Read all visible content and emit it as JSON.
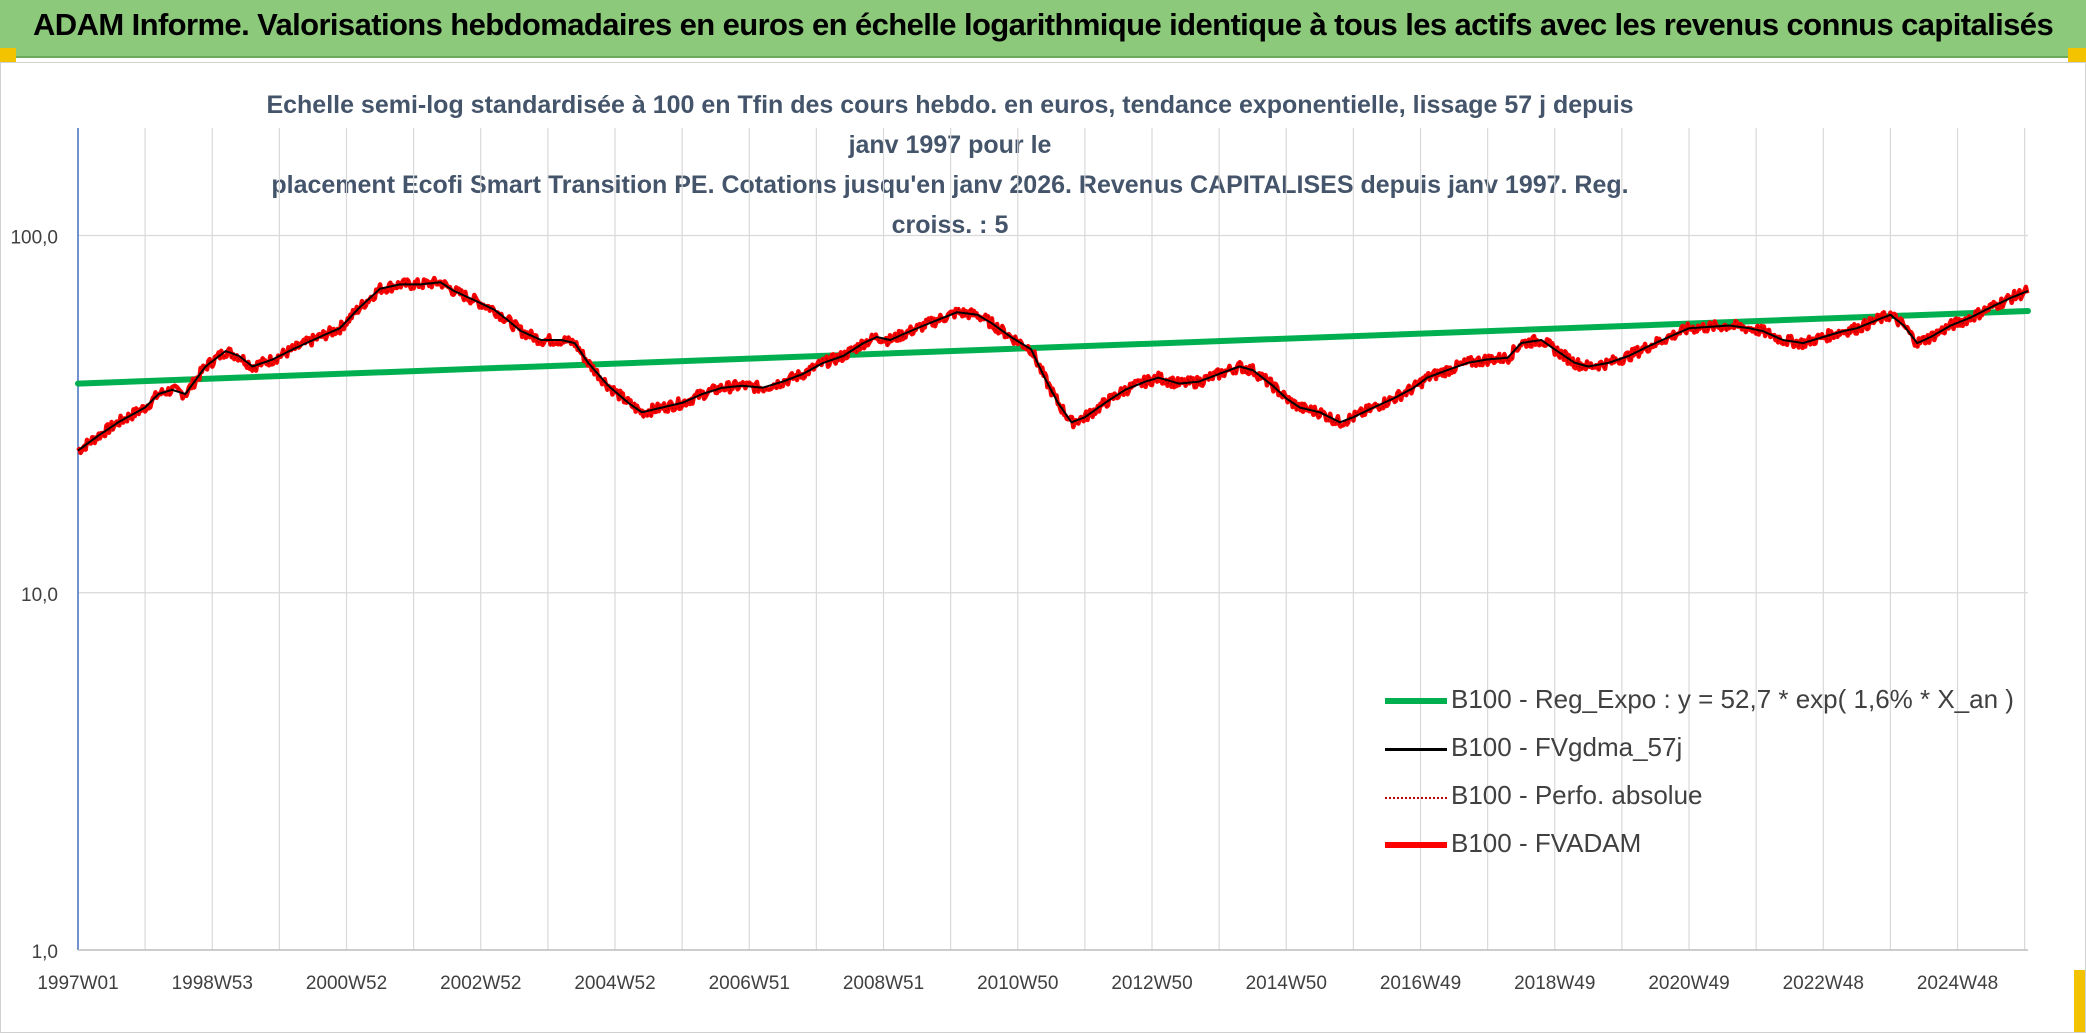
{
  "header": {
    "title": "ADAM Informe. Valorisations hebdomadaires en euros en échelle logarithmique identique à tous les actifs avec les revenus connus capitalisés"
  },
  "colors": {
    "banner": "#8cc97a",
    "reg_expo": "#00b050",
    "fvgdma": "#000000",
    "perfo": "#c00000",
    "fvadam": "#ff0000"
  },
  "chart_data": {
    "type": "line",
    "title": "Echelle semi-log standardisée à 100 en Tfin des cours hebdo. en euros, tendance exponentielle, lissage 57 j depuis janv 1997 pour le placement Ecofi Smart Transition PE. Cotations jusqu'en janv 2026. Revenus CAPITALISES depuis janv 1997. Reg. croiss. : 5",
    "title_lines": [
      "Echelle semi-log standardisée à 100 en Tfin des cours hebdo. en euros, tendance exponentielle, lissage 57 j depuis janv 1997 pour le",
      "placement Ecofi Smart Transition PE. Cotations jusqu'en janv 2026. Revenus CAPITALISES depuis janv 1997. Reg. croiss. : 5"
    ],
    "y_scale": "log",
    "ylim": [
      1,
      200
    ],
    "y_ticks": [
      {
        "value": 1,
        "label": "1,0"
      },
      {
        "value": 10,
        "label": "10,0"
      },
      {
        "value": 100,
        "label": "100,0"
      }
    ],
    "x_range": [
      1997.0,
      2026.05
    ],
    "x_ticks": [
      {
        "value": 1997.0,
        "label": "1997W01"
      },
      {
        "value": 1999.0,
        "label": "1998W53"
      },
      {
        "value": 2001.0,
        "label": "2000W52"
      },
      {
        "value": 2003.0,
        "label": "2002W52"
      },
      {
        "value": 2005.0,
        "label": "2004W52"
      },
      {
        "value": 2007.0,
        "label": "2006W51"
      },
      {
        "value": 2009.0,
        "label": "2008W51"
      },
      {
        "value": 2011.0,
        "label": "2010W50"
      },
      {
        "value": 2013.0,
        "label": "2012W50"
      },
      {
        "value": 2015.0,
        "label": "2014W50"
      },
      {
        "value": 2017.0,
        "label": "2016W49"
      },
      {
        "value": 2019.0,
        "label": "2018W49"
      },
      {
        "value": 2021.0,
        "label": "2020W49"
      },
      {
        "value": 2023.0,
        "label": "2022W48"
      },
      {
        "value": 2025.0,
        "label": "2024W48"
      }
    ],
    "grid": true,
    "legend_position": "bottom-right",
    "series": [
      {
        "name": "B100 - Reg_Expo : y = 52,7 * exp( 1,6% *  X_an )",
        "style": "solid-thick",
        "points": [
          [
            1997.0,
            38.5
          ],
          [
            2026.05,
            61.5
          ]
        ]
      },
      {
        "name": "B100 - FVgdma_57j",
        "style": "solid-thin",
        "points": [
          [
            1997.0,
            25
          ],
          [
            1997.3,
            27.5
          ],
          [
            1997.6,
            30
          ],
          [
            1998.0,
            33
          ],
          [
            1998.2,
            36
          ],
          [
            1998.4,
            37
          ],
          [
            1998.6,
            36
          ],
          [
            1998.9,
            43
          ],
          [
            1999.2,
            47.5
          ],
          [
            1999.4,
            46
          ],
          [
            1999.6,
            43
          ],
          [
            1999.9,
            45
          ],
          [
            2000.2,
            48
          ],
          [
            2000.4,
            50
          ],
          [
            2000.7,
            53
          ],
          [
            2000.9,
            55
          ],
          [
            2001.2,
            63
          ],
          [
            2001.5,
            71
          ],
          [
            2001.8,
            73
          ],
          [
            2002.1,
            73
          ],
          [
            2002.4,
            74
          ],
          [
            2002.6,
            70
          ],
          [
            2002.9,
            66
          ],
          [
            2003.2,
            62
          ],
          [
            2003.4,
            58
          ],
          [
            2003.6,
            54
          ],
          [
            2003.9,
            51
          ],
          [
            2004.2,
            51
          ],
          [
            2004.4,
            50
          ],
          [
            2004.6,
            44
          ],
          [
            2004.9,
            38
          ],
          [
            2005.2,
            34
          ],
          [
            2005.4,
            32
          ],
          [
            2005.7,
            33
          ],
          [
            2006.0,
            34
          ],
          [
            2006.3,
            36
          ],
          [
            2006.6,
            37.5
          ],
          [
            2006.9,
            38
          ],
          [
            2007.2,
            37.5
          ],
          [
            2007.5,
            39
          ],
          [
            2007.8,
            41
          ],
          [
            2008.1,
            44
          ],
          [
            2008.4,
            46
          ],
          [
            2008.7,
            50
          ],
          [
            2008.9,
            52
          ],
          [
            2009.1,
            51
          ],
          [
            2009.3,
            53
          ],
          [
            2009.6,
            56
          ],
          [
            2009.9,
            59
          ],
          [
            2010.1,
            61
          ],
          [
            2010.4,
            60
          ],
          [
            2010.6,
            57
          ],
          [
            2010.9,
            52
          ],
          [
            2011.2,
            48
          ],
          [
            2011.4,
            40
          ],
          [
            2011.6,
            34
          ],
          [
            2011.8,
            30
          ],
          [
            2012.0,
            31
          ],
          [
            2012.3,
            34
          ],
          [
            2012.6,
            37
          ],
          [
            2012.9,
            39
          ],
          [
            2013.1,
            40
          ],
          [
            2013.4,
            38.5
          ],
          [
            2013.7,
            39
          ],
          [
            2014.0,
            41
          ],
          [
            2014.3,
            43
          ],
          [
            2014.5,
            42
          ],
          [
            2014.8,
            38
          ],
          [
            2015.0,
            35
          ],
          [
            2015.2,
            33
          ],
          [
            2015.5,
            32
          ],
          [
            2015.8,
            30
          ],
          [
            2016.0,
            31
          ],
          [
            2016.3,
            33
          ],
          [
            2016.6,
            35
          ],
          [
            2016.9,
            37.5
          ],
          [
            2017.1,
            40
          ],
          [
            2017.4,
            42
          ],
          [
            2017.7,
            44
          ],
          [
            2018.0,
            45
          ],
          [
            2018.3,
            45.5
          ],
          [
            2018.5,
            50
          ],
          [
            2018.8,
            51
          ],
          [
            2019.0,
            48
          ],
          [
            2019.3,
            44
          ],
          [
            2019.5,
            43
          ],
          [
            2019.8,
            44
          ],
          [
            2020.1,
            46
          ],
          [
            2020.4,
            49
          ],
          [
            2020.7,
            52
          ],
          [
            2021.0,
            55
          ],
          [
            2021.3,
            55.5
          ],
          [
            2021.6,
            56
          ],
          [
            2021.9,
            55
          ],
          [
            2022.1,
            54
          ],
          [
            2022.4,
            51
          ],
          [
            2022.7,
            50
          ],
          [
            2023.0,
            52
          ],
          [
            2023.3,
            54
          ],
          [
            2023.5,
            55
          ],
          [
            2023.8,
            58
          ],
          [
            2024.0,
            60
          ],
          [
            2024.2,
            56
          ],
          [
            2024.4,
            50
          ],
          [
            2024.6,
            52
          ],
          [
            2024.9,
            56
          ],
          [
            2025.2,
            59
          ],
          [
            2025.5,
            63
          ],
          [
            2025.8,
            67
          ],
          [
            2026.05,
            70
          ]
        ]
      },
      {
        "name": "B100 - Perfo. absolue",
        "style": "dotted",
        "points": []
      },
      {
        "name": "B100 - FVADAM",
        "style": "solid-thick",
        "points": []
      }
    ]
  }
}
